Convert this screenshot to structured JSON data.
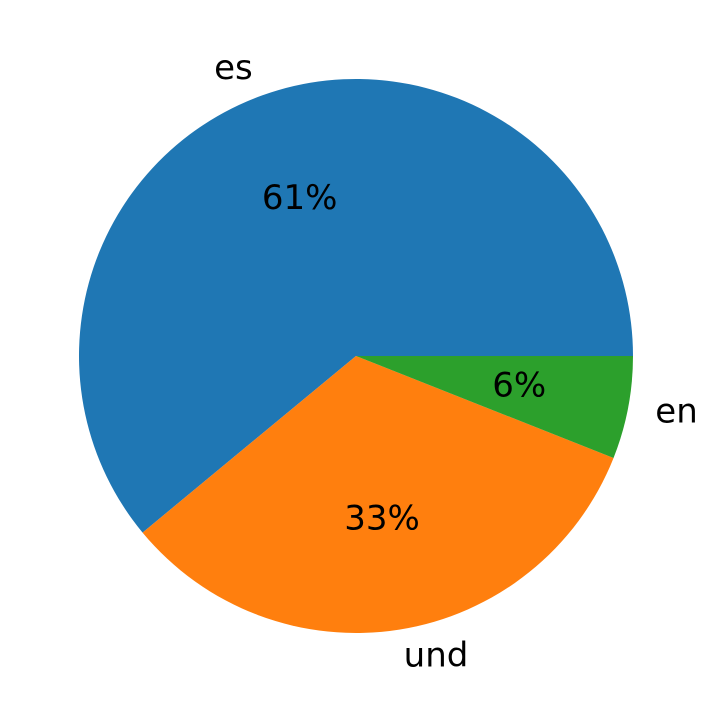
{
  "chart_data": {
    "type": "pie",
    "categories": [
      "es",
      "und",
      "en"
    ],
    "values": [
      61,
      33,
      6
    ],
    "value_labels": [
      "61%",
      "33%",
      "6%"
    ],
    "colors": [
      "#1f77b4",
      "#ff7f0e",
      "#2ca02c"
    ],
    "start_angle": 0,
    "counterclockwise": true
  }
}
